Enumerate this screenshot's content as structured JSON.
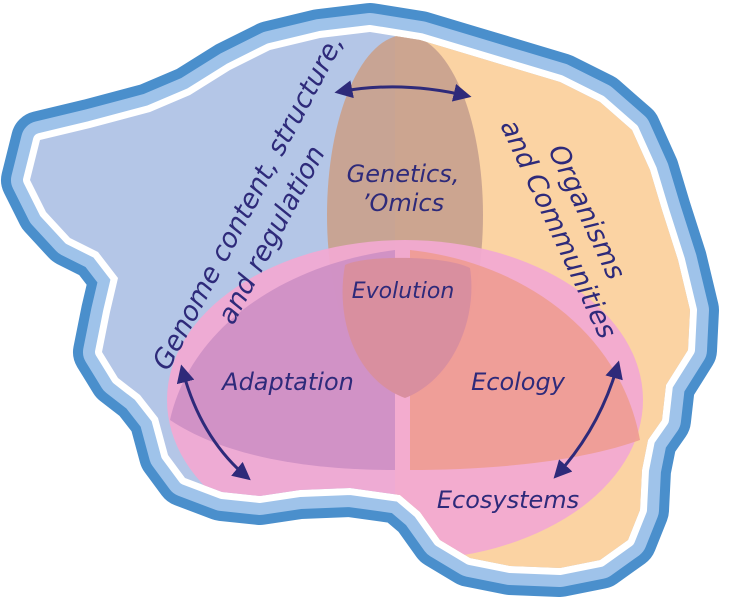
{
  "labels": {
    "genome_line1": "Genome content, structure,",
    "genome_line2": "and regulation",
    "organisms_line1": "Organisms",
    "organisms_line2": "and Communities",
    "genetics_line1": "Genetics,",
    "genetics_line2": "’Omics",
    "evolution": "Evolution",
    "adaptation": "Adaptation",
    "ecology": "Ecology",
    "ecosystems": "Ecosystems"
  },
  "colors": {
    "outer_border": "#4a8fcc",
    "mid_border": "#9fc3ea",
    "continent_edge": "#ffffff",
    "blue_region": "#b4c6e7",
    "orange_region": "#fbd3a3",
    "pink_region": "#f2a9d2",
    "overlap_top": "#c9a28f",
    "overlap_left": "#cd8fc4",
    "overlap_right": "#ef9c94",
    "overlap_center": "#d98f9f",
    "text": "#2e2a7a",
    "arrows": "#2e2a7a"
  }
}
